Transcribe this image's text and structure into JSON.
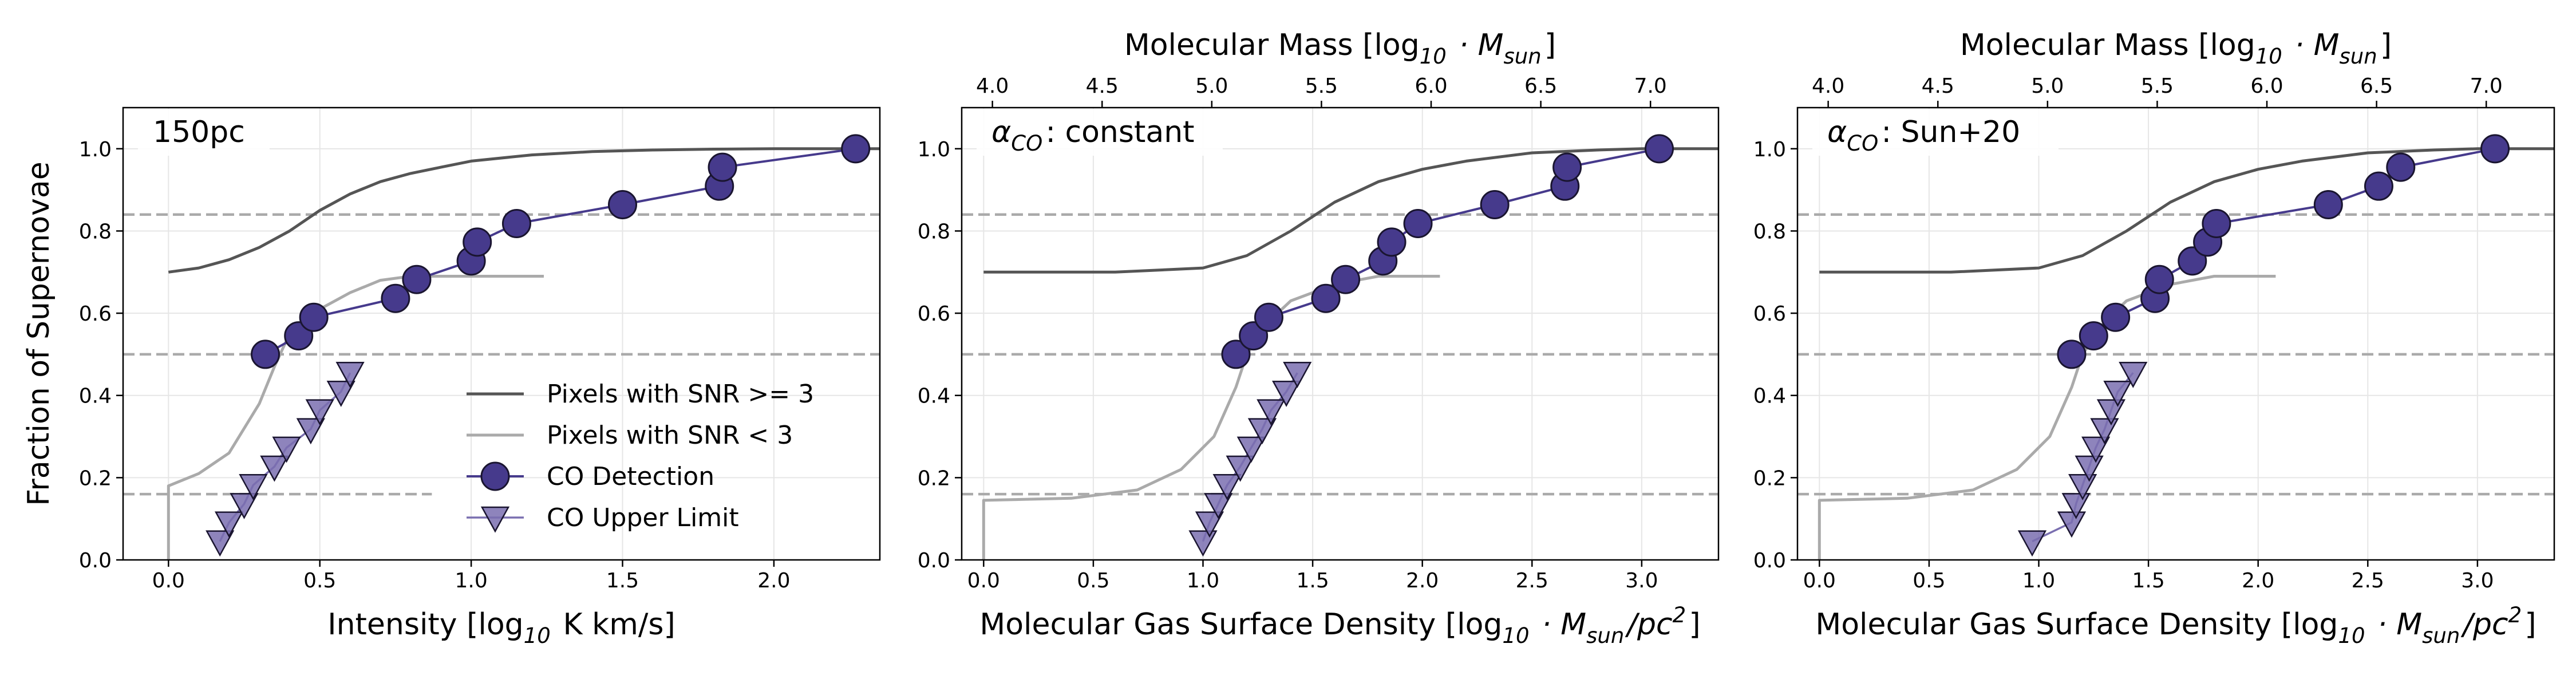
{
  "figure": {
    "colors": {
      "detection": "#463a8c",
      "detection_edge": "#1a1530",
      "upper_limit": "#7a6fb0",
      "snr_high": "#555555",
      "snr_low": "#aaaaaa",
      "reference": "#aaaaaa",
      "grid": "#e6e6e6"
    }
  },
  "chart_data": [
    {
      "type": "line",
      "panel_label": "150pc",
      "xlabel": "Intensity [log$_{10}$ K km/s]",
      "ylabel": "Fraction of Supernovae",
      "xlim": [
        -0.15,
        2.35
      ],
      "ylim": [
        0.0,
        1.1
      ],
      "xticks": [
        "0.0",
        "0.5",
        "1.0",
        "1.5",
        "2.0"
      ],
      "yticks": [
        "0.0",
        "0.2",
        "0.4",
        "0.6",
        "0.8",
        "1.0"
      ],
      "grid": true,
      "legend": {
        "placement": "lower-right",
        "entries": [
          "Pixels with SNR >= 3",
          "Pixels with SNR < 3",
          "CO Detection",
          "CO Upper Limit"
        ]
      },
      "reference_lines": [
        {
          "y": 0.84,
          "x": [
            -0.15,
            2.35
          ]
        },
        {
          "y": 0.5,
          "x": [
            -0.15,
            2.35
          ]
        },
        {
          "y": 0.16,
          "x": [
            -0.15,
            0.87
          ]
        }
      ],
      "series": [
        {
          "name": "Pixels with SNR >= 3",
          "style": "snr_high",
          "x": [
            0.0,
            0.1,
            0.2,
            0.3,
            0.4,
            0.5,
            0.6,
            0.7,
            0.8,
            0.9,
            1.0,
            1.2,
            1.4,
            1.6,
            1.8,
            2.0,
            2.35
          ],
          "y": [
            0.7,
            0.71,
            0.73,
            0.76,
            0.8,
            0.85,
            0.89,
            0.92,
            0.94,
            0.955,
            0.97,
            0.985,
            0.993,
            0.997,
            0.999,
            1.0,
            1.0
          ]
        },
        {
          "name": "Pixels with SNR < 3",
          "style": "snr_low",
          "x": [
            0.0,
            0.0,
            0.1,
            0.2,
            0.3,
            0.35,
            0.4,
            0.5,
            0.6,
            0.7,
            0.8,
            1.0,
            1.24
          ],
          "y": [
            0.0,
            0.18,
            0.21,
            0.26,
            0.38,
            0.47,
            0.55,
            0.61,
            0.65,
            0.68,
            0.69,
            0.69,
            0.69
          ]
        },
        {
          "name": "CO Detection",
          "style": "detection",
          "x": [
            0.32,
            0.43,
            0.48,
            0.75,
            0.82,
            1.0,
            1.02,
            1.15,
            1.5,
            1.82,
            1.83,
            2.27
          ],
          "y": [
            0.5,
            0.545,
            0.59,
            0.636,
            0.682,
            0.727,
            0.773,
            0.818,
            0.864,
            0.909,
            0.955,
            1.0
          ]
        },
        {
          "name": "CO Upper Limit",
          "style": "upper_limit",
          "x": [
            0.17,
            0.2,
            0.25,
            0.28,
            0.35,
            0.39,
            0.47,
            0.5,
            0.57,
            0.6
          ],
          "y": [
            0.045,
            0.091,
            0.136,
            0.182,
            0.227,
            0.273,
            0.318,
            0.364,
            0.409,
            0.455
          ]
        }
      ]
    },
    {
      "type": "line",
      "panel_label": "$\\alpha_{CO}$: constant",
      "xlabel": "Molecular Gas Surface Density [log$_{10} \\cdot M_{sun}/pc^2$]",
      "top_xlabel": "Molecular Mass [log$_{10} \\cdot M_{sun}$]",
      "xlim": [
        -0.1,
        3.35
      ],
      "ylim": [
        0.0,
        1.1
      ],
      "xticks": [
        "0.0",
        "0.5",
        "1.0",
        "1.5",
        "2.0",
        "2.5",
        "3.0"
      ],
      "top_xticks": [
        "4.0",
        "4.5",
        "5.0",
        "5.5",
        "6.0",
        "6.5",
        "7.0"
      ],
      "top_axis": {
        "offset": 3.96
      },
      "yticks": [
        "0.0",
        "0.2",
        "0.4",
        "0.6",
        "0.8",
        "1.0"
      ],
      "grid": true,
      "reference_lines": [
        {
          "y": 0.84,
          "x": [
            -0.1,
            3.35
          ]
        },
        {
          "y": 0.5,
          "x": [
            -0.1,
            3.35
          ]
        },
        {
          "y": 0.16,
          "x": [
            -0.1,
            3.35
          ]
        }
      ],
      "series": [
        {
          "name": "Pixels with SNR >= 3",
          "style": "snr_high",
          "x": [
            0.0,
            0.3,
            0.6,
            1.0,
            1.2,
            1.4,
            1.6,
            1.8,
            2.0,
            2.2,
            2.5,
            2.8,
            3.0,
            3.35
          ],
          "y": [
            0.7,
            0.7,
            0.7,
            0.71,
            0.74,
            0.8,
            0.87,
            0.92,
            0.95,
            0.97,
            0.99,
            0.997,
            1.0,
            1.0
          ]
        },
        {
          "name": "Pixels with SNR < 3",
          "style": "snr_low",
          "x": [
            0.0,
            0.0,
            0.4,
            0.7,
            0.9,
            1.05,
            1.15,
            1.2,
            1.3,
            1.4,
            1.6,
            1.8,
            2.08
          ],
          "y": [
            0.0,
            0.145,
            0.15,
            0.17,
            0.22,
            0.3,
            0.42,
            0.5,
            0.58,
            0.63,
            0.67,
            0.69,
            0.69
          ]
        },
        {
          "name": "CO Detection",
          "style": "detection",
          "x": [
            1.15,
            1.23,
            1.3,
            1.56,
            1.65,
            1.82,
            1.86,
            1.98,
            2.33,
            2.65,
            2.66,
            3.08
          ],
          "y": [
            0.5,
            0.545,
            0.59,
            0.636,
            0.682,
            0.727,
            0.773,
            0.818,
            0.864,
            0.909,
            0.955,
            1.0
          ]
        },
        {
          "name": "CO Upper Limit",
          "style": "upper_limit",
          "x": [
            1.0,
            1.03,
            1.07,
            1.11,
            1.17,
            1.22,
            1.27,
            1.31,
            1.38,
            1.43
          ],
          "y": [
            0.045,
            0.091,
            0.136,
            0.182,
            0.227,
            0.273,
            0.318,
            0.364,
            0.409,
            0.455
          ]
        }
      ]
    },
    {
      "type": "line",
      "panel_label": "$\\alpha_{CO}$: Sun+20",
      "xlabel": "Molecular Gas Surface Density [log$_{10} \\cdot M_{sun}/pc^2$]",
      "top_xlabel": "Molecular Mass [log$_{10} \\cdot M_{sun}$]",
      "xlim": [
        -0.1,
        3.35
      ],
      "ylim": [
        0.0,
        1.1
      ],
      "xticks": [
        "0.0",
        "0.5",
        "1.0",
        "1.5",
        "2.0",
        "2.5",
        "3.0"
      ],
      "top_xticks": [
        "4.0",
        "4.5",
        "5.0",
        "5.5",
        "6.0",
        "6.5",
        "7.0"
      ],
      "top_axis": {
        "offset": 3.96
      },
      "yticks": [
        "0.0",
        "0.2",
        "0.4",
        "0.6",
        "0.8",
        "1.0"
      ],
      "grid": true,
      "reference_lines": [
        {
          "y": 0.84,
          "x": [
            -0.1,
            3.35
          ]
        },
        {
          "y": 0.5,
          "x": [
            -0.1,
            3.35
          ]
        },
        {
          "y": 0.16,
          "x": [
            -0.1,
            3.35
          ]
        }
      ],
      "series": [
        {
          "name": "Pixels with SNR >= 3",
          "style": "snr_high",
          "x": [
            0.0,
            0.3,
            0.6,
            1.0,
            1.2,
            1.4,
            1.6,
            1.8,
            2.0,
            2.2,
            2.5,
            2.8,
            3.0,
            3.35
          ],
          "y": [
            0.7,
            0.7,
            0.7,
            0.71,
            0.74,
            0.8,
            0.87,
            0.92,
            0.95,
            0.97,
            0.99,
            0.997,
            1.0,
            1.0
          ]
        },
        {
          "name": "Pixels with SNR < 3",
          "style": "snr_low",
          "x": [
            0.0,
            0.0,
            0.4,
            0.7,
            0.9,
            1.05,
            1.15,
            1.2,
            1.3,
            1.4,
            1.6,
            1.8,
            2.08
          ],
          "y": [
            0.0,
            0.145,
            0.15,
            0.17,
            0.22,
            0.3,
            0.42,
            0.5,
            0.58,
            0.63,
            0.67,
            0.69,
            0.69
          ]
        },
        {
          "name": "CO Detection",
          "style": "detection",
          "x": [
            1.15,
            1.25,
            1.35,
            1.53,
            1.55,
            1.7,
            1.77,
            1.81,
            2.32,
            2.55,
            2.65,
            3.08
          ],
          "y": [
            0.5,
            0.545,
            0.59,
            0.636,
            0.682,
            0.727,
            0.773,
            0.818,
            0.864,
            0.909,
            0.955,
            1.0
          ]
        },
        {
          "name": "CO Upper Limit",
          "style": "upper_limit",
          "x": [
            0.97,
            1.15,
            1.17,
            1.2,
            1.23,
            1.26,
            1.3,
            1.33,
            1.36,
            1.43
          ],
          "y": [
            0.045,
            0.091,
            0.136,
            0.182,
            0.227,
            0.273,
            0.318,
            0.364,
            0.409,
            0.455
          ]
        }
      ]
    }
  ]
}
